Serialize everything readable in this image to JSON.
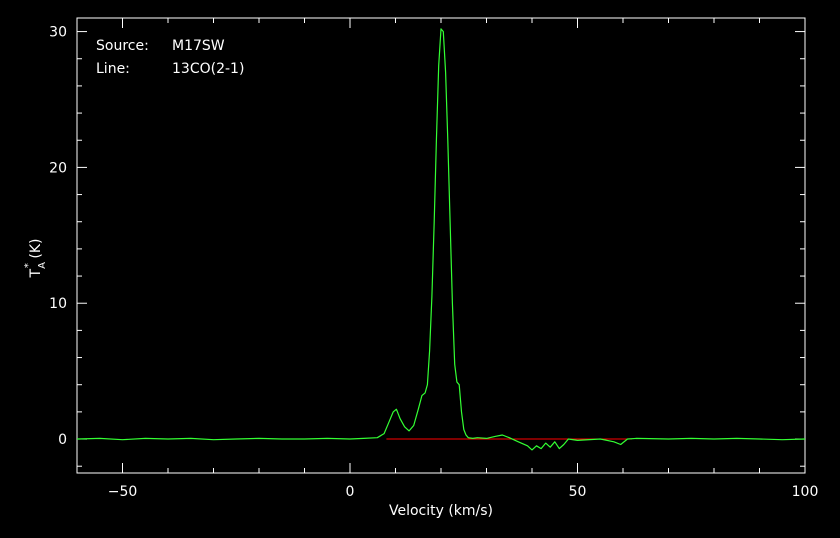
{
  "chart_data": {
    "type": "line",
    "title": "",
    "xlabel": "Velocity (km/s)",
    "ylabel_main": "T",
    "ylabel_sub": "A",
    "ylabel_sup": "*",
    "ylabel_unit": " (K)",
    "xlim": [
      -60,
      100
    ],
    "ylim": [
      -2.5,
      31
    ],
    "x_ticks": [
      -50,
      0,
      50,
      100
    ],
    "x_tick_labels": [
      "−50",
      "0",
      "50",
      "100"
    ],
    "y_ticks": [
      0,
      10,
      20,
      30
    ],
    "y_tick_labels": [
      "0",
      "10",
      "20",
      "30"
    ],
    "grid": false,
    "annotations": {
      "source_label": "Source:",
      "source_value": "M17SW",
      "line_label": "Line:",
      "line_value": "13CO(2-1)"
    },
    "baseline": {
      "y": 0,
      "x_range": [
        8,
        62
      ]
    },
    "series": [
      {
        "x": [
          -60,
          -55,
          -50,
          -45,
          -40,
          -35,
          -30,
          -25,
          -20,
          -15,
          -10,
          -5,
          0,
          3,
          6,
          7.5,
          8.5,
          9.5,
          10.2,
          11,
          12,
          13,
          14,
          15,
          15.8,
          16.5,
          17,
          17.5,
          18,
          18.5,
          19,
          19.5,
          20,
          20.5,
          21,
          21.5,
          22,
          22.5,
          23,
          23.5,
          24,
          24.5,
          25,
          25.5,
          26,
          27,
          28,
          30,
          32,
          33.5,
          35,
          37,
          39,
          40,
          41,
          42,
          43,
          44,
          45,
          46,
          47,
          48,
          50,
          55,
          58,
          59.5,
          61,
          63,
          70,
          75,
          80,
          85,
          90,
          95,
          100
        ],
        "y": [
          0,
          0.05,
          -0.05,
          0.05,
          0,
          0.05,
          -0.05,
          0,
          0.05,
          0,
          0,
          0.05,
          0,
          0.05,
          0.1,
          0.4,
          1.2,
          2.0,
          2.2,
          1.5,
          0.9,
          0.6,
          1.0,
          2.2,
          3.2,
          3.4,
          4.0,
          6.5,
          10.5,
          16.0,
          22.0,
          27.5,
          30.2,
          30.0,
          27.0,
          22.0,
          16.0,
          10.0,
          5.5,
          4.2,
          4.0,
          2.0,
          0.7,
          0.3,
          0.1,
          0.05,
          0.1,
          0.05,
          0.2,
          0.3,
          0.1,
          -0.2,
          -0.5,
          -0.8,
          -0.5,
          -0.7,
          -0.3,
          -0.6,
          -0.2,
          -0.7,
          -0.4,
          0.0,
          -0.1,
          0,
          -0.2,
          -0.4,
          0.0,
          0.05,
          0,
          0.05,
          0,
          0.05,
          0,
          -0.05,
          0
        ]
      }
    ],
    "colors": {
      "background": "#000000",
      "axes": "#ffffff",
      "spectrum": "#33ff33",
      "baseline": "#ff0000"
    }
  }
}
